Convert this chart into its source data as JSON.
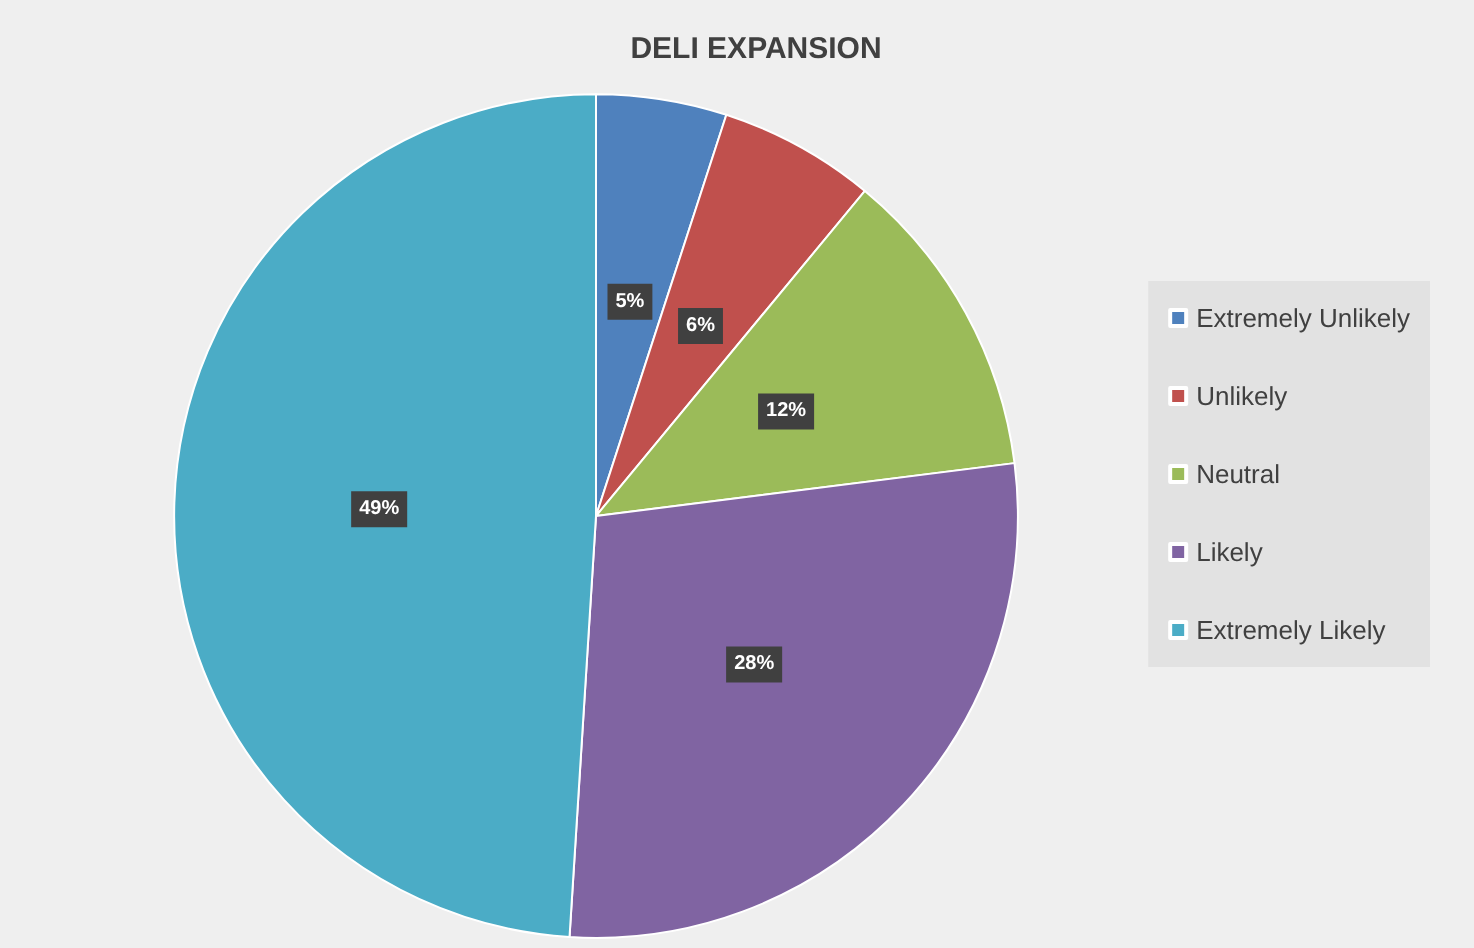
{
  "chart_data": {
    "type": "pie",
    "title": "DELI EXPANSION",
    "categories": [
      "Extremely Unlikely",
      "Unlikely",
      "Neutral",
      "Likely",
      "Extremely Likely"
    ],
    "values": [
      5,
      6,
      12,
      28,
      49
    ],
    "value_labels": [
      "5%",
      "6%",
      "12%",
      "28%",
      "49%"
    ],
    "colors": [
      "#4f81bd",
      "#c0504d",
      "#9bbb59",
      "#8064a2",
      "#4bacc6"
    ],
    "legend": "right"
  }
}
